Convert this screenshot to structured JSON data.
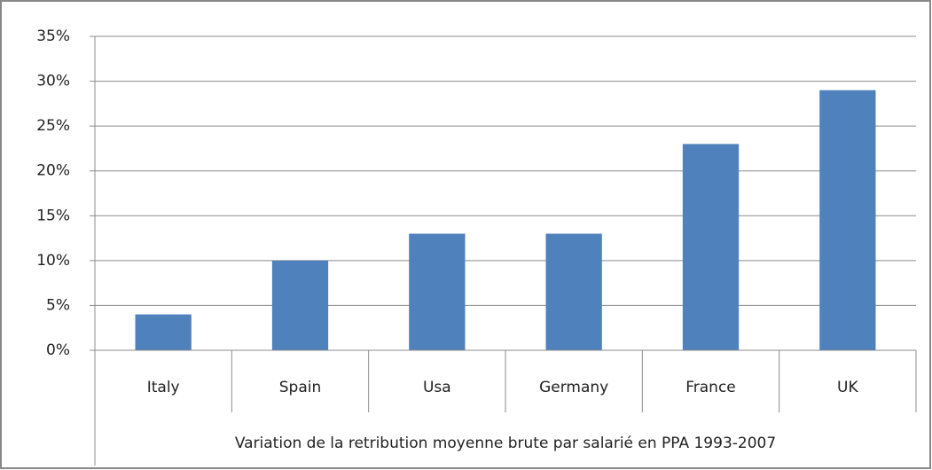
{
  "chart_data": {
    "type": "bar",
    "x_label": "Variation de la retribution moyenne brute par salarié en PPA 1993-2007",
    "categories": [
      "Italy",
      "Spain",
      "Usa",
      "Germany",
      "France",
      "UK"
    ],
    "values": [
      4,
      10,
      13,
      13,
      23,
      29
    ],
    "color": "#4f81bd",
    "ylim": [
      0,
      35
    ],
    "yticks": [
      {
        "value": 0,
        "label": "0%"
      },
      {
        "value": 5,
        "label": "5%"
      },
      {
        "value": 10,
        "label": "10%"
      },
      {
        "value": 15,
        "label": "15%"
      },
      {
        "value": 20,
        "label": "20%"
      },
      {
        "value": 25,
        "label": "25%"
      },
      {
        "value": 30,
        "label": "30%"
      },
      {
        "value": 35,
        "label": "35%"
      }
    ],
    "grid": true
  }
}
